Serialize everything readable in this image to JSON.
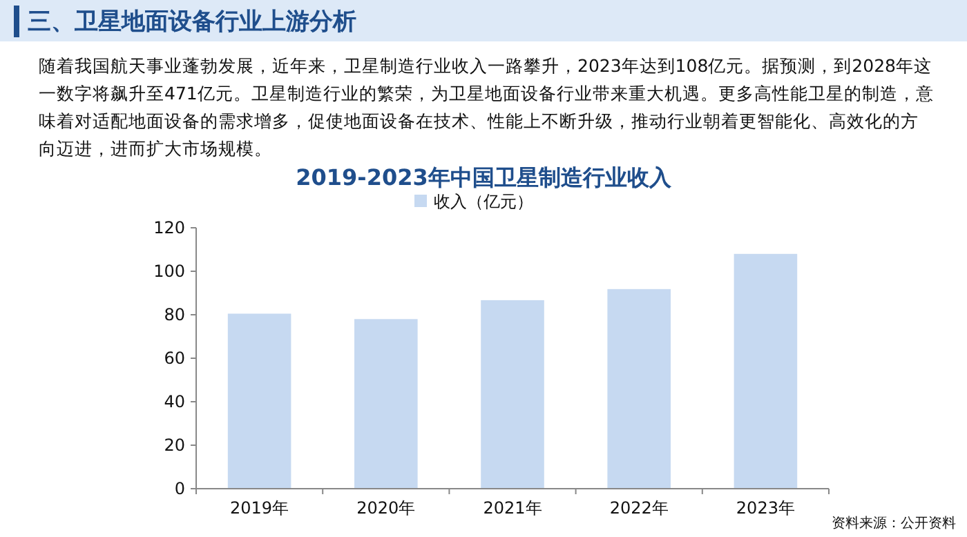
{
  "chart_data": {
    "type": "bar",
    "title": "2019-2023年中国卫星制造行业收入",
    "annotations": [
      "三、卫星地面设备行业上游分析",
      "随着我国航天事业蓬勃发展，近年来，卫星制造行业收入一路攀升，2023年达到108亿元。据预测，到2028年这一数字将飙升至471亿元。卫星制造行业的繁荣，为卫星地面设备行业带来重大机遇。更多高性能卫星的制造，意味着对适配地面设备的需求增多，促使地面设备在技术、性能上不断升级，推动行业朝着更智能化、高效化的方向迈进，进而扩大市场规模。",
      "资料来源：公开资料"
    ],
    "categories": [
      "2019年",
      "2020年",
      "2021年",
      "2022年",
      "2023年"
    ],
    "series": [
      {
        "name": "收入（亿元）",
        "color": "#c6d9f1",
        "values": [
          80.5,
          78,
          86.7,
          91.8,
          108
        ]
      }
    ],
    "ylim": [
      0,
      120
    ],
    "yticks": [
      0,
      20,
      40,
      60,
      80,
      100,
      120
    ],
    "grid": false,
    "legend": "top"
  }
}
